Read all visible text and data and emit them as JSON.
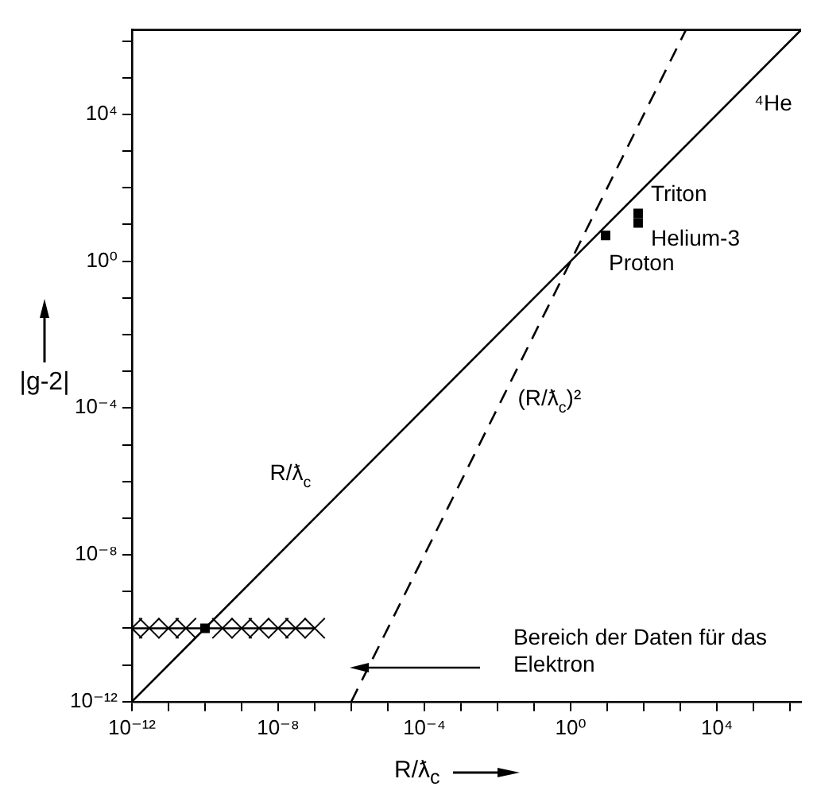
{
  "chart_data": {
    "type": "line",
    "xlabel": "R/ƛ$_{c}$",
    "ylabel": "|g-2|",
    "log": "xy",
    "xlim": [
      1e-12,
      2000000.0
    ],
    "ylim": [
      1e-12,
      2000000.0
    ],
    "xticks": [
      {
        "value": 1e-12,
        "label": "10⁻¹²"
      },
      {
        "value": 1e-11,
        "label": null
      },
      {
        "value": 1e-10,
        "label": null
      },
      {
        "value": 1e-09,
        "label": null
      },
      {
        "value": 1e-08,
        "label": "10⁻⁸"
      },
      {
        "value": 1e-07,
        "label": null
      },
      {
        "value": 1e-06,
        "label": null
      },
      {
        "value": 1e-05,
        "label": null
      },
      {
        "value": 0.0001,
        "label": "10⁻⁴"
      },
      {
        "value": 0.001,
        "label": null
      },
      {
        "value": 0.01,
        "label": null
      },
      {
        "value": 0.1,
        "label": null
      },
      {
        "value": 1,
        "label": "10⁰"
      },
      {
        "value": 10,
        "label": null
      },
      {
        "value": 100,
        "label": null
      },
      {
        "value": 1000,
        "label": null
      },
      {
        "value": 10000,
        "label": "10⁴"
      },
      {
        "value": 100000,
        "label": null
      },
      {
        "value": 1000000,
        "label": null
      }
    ],
    "yticks": [
      {
        "value": 1e-12,
        "label": "10⁻¹²"
      },
      {
        "value": 1e-11,
        "label": null
      },
      {
        "value": 1e-10,
        "label": null
      },
      {
        "value": 1e-09,
        "label": null
      },
      {
        "value": 1e-08,
        "label": "10⁻⁸"
      },
      {
        "value": 1e-07,
        "label": null
      },
      {
        "value": 1e-06,
        "label": null
      },
      {
        "value": 1e-05,
        "label": null
      },
      {
        "value": 0.0001,
        "label": "10⁻⁴"
      },
      {
        "value": 0.001,
        "label": null
      },
      {
        "value": 0.01,
        "label": null
      },
      {
        "value": 0.1,
        "label": null
      },
      {
        "value": 1,
        "label": "10⁰"
      },
      {
        "value": 10,
        "label": null
      },
      {
        "value": 100,
        "label": null
      },
      {
        "value": 1000,
        "label": null
      },
      {
        "value": 10000,
        "label": "10⁴"
      },
      {
        "value": 100000,
        "label": null
      },
      {
        "value": 1000000,
        "label": null
      }
    ],
    "series": [
      {
        "name": "R/ƛ$_{c}$",
        "color": "#000000",
        "line_style": "solid",
        "marker": "none",
        "x": [
          1e-12,
          2000000.0
        ],
        "values": [
          1e-12,
          2000000.0
        ]
      },
      {
        "name": "(R/ƛ$_{c}$)²",
        "color": "#000000",
        "line_style": "dashed",
        "marker": "none",
        "x": [
          1e-06,
          1414
        ],
        "values": [
          1e-12,
          2000000.0
        ]
      },
      {
        "name": "Proton",
        "type": "scatter",
        "color": "#000000",
        "marker": "square",
        "x": [
          9
        ],
        "values": [
          5
        ]
      },
      {
        "name": "Helium-3",
        "type": "scatter",
        "color": "#000000",
        "marker": "square",
        "x": [
          70
        ],
        "values": [
          11
        ]
      },
      {
        "name": "Triton",
        "type": "scatter",
        "color": "#000000",
        "marker": "square",
        "x": [
          70
        ],
        "values": [
          20
        ]
      },
      {
        "type": "scatter",
        "color": "#000000",
        "marker": "square",
        "x": [
          1e-10
        ],
        "values": [
          1e-10
        ]
      },
      {
        "type": "line",
        "color": "#000000",
        "line_style": "solid",
        "marker": "cross",
        "x": [
          1e-12,
          3e-12,
          1e-11,
          3e-11,
          3e-10,
          1e-09,
          3e-09,
          1e-08,
          3e-08,
          1e-07
        ],
        "values": [
          1e-10,
          1e-10,
          1e-10,
          1e-10,
          1e-10,
          1e-10,
          1e-10,
          1e-10,
          1e-10,
          1e-10
        ]
      }
    ],
    "annotations": [
      "Bereich der Daten für das Elektron",
      "⁴He"
    ]
  }
}
